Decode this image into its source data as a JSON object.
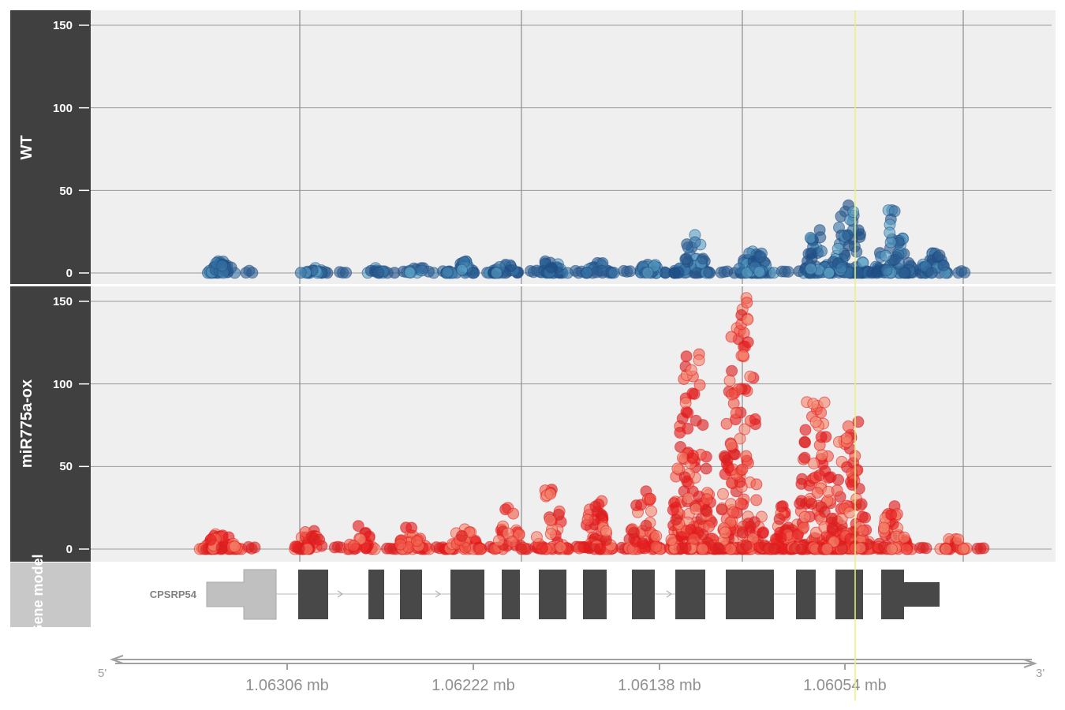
{
  "chart_data": {
    "type": "scatter",
    "tracks": [
      {
        "name": "WT",
        "ylim": [
          0,
          150
        ],
        "yticks": [
          "0",
          "50",
          "100",
          "150"
        ],
        "colors": [
          "#1f4e85",
          "#2b5c8f",
          "#3a78a8",
          "#5aa0c4"
        ]
      },
      {
        "name": "miR775a-ox",
        "ylim": [
          0,
          150
        ],
        "yticks": [
          "0",
          "50",
          "100",
          "150"
        ],
        "colors": [
          "#e41a1c",
          "#d92020",
          "#f05a4a",
          "#f4866e"
        ]
      }
    ],
    "gene_model": {
      "track_title": "Gene model",
      "gene_name": "CPSRP54",
      "strand": "-"
    },
    "axis": {
      "ticks": [
        "1.06306 mb",
        "1.06222 mb",
        "1.06138 mb",
        "1.06054 mb"
      ],
      "left_end": "5'",
      "right_end": "3'"
    },
    "highlight_color": "#e8f27a",
    "wt_clusters": [
      {
        "x": 1.06336,
        "n": 34,
        "ymax": 7
      },
      {
        "x": 1.06293,
        "n": 18,
        "ymax": 3
      },
      {
        "x": 1.06264,
        "n": 14,
        "ymax": 3
      },
      {
        "x": 1.06246,
        "n": 10,
        "ymax": 3
      },
      {
        "x": 1.06227,
        "n": 32,
        "ymax": 7
      },
      {
        "x": 1.06207,
        "n": 22,
        "ymax": 5
      },
      {
        "x": 1.06187,
        "n": 30,
        "ymax": 7
      },
      {
        "x": 1.06165,
        "n": 26,
        "ymax": 6
      },
      {
        "x": 1.06142,
        "n": 26,
        "ymax": 5
      },
      {
        "x": 1.06122,
        "n": 48,
        "ymax": 23
      },
      {
        "x": 1.06095,
        "n": 60,
        "ymax": 13
      },
      {
        "x": 1.06068,
        "n": 40,
        "ymax": 26
      },
      {
        "x": 1.06052,
        "n": 70,
        "ymax": 41
      },
      {
        "x": 1.06032,
        "n": 70,
        "ymax": 38
      },
      {
        "x": 1.06014,
        "n": 30,
        "ymax": 12
      }
    ],
    "ox_clusters": [
      {
        "x": 1.06336,
        "n": 60,
        "ymax": 9
      },
      {
        "x": 1.06296,
        "n": 35,
        "ymax": 11
      },
      {
        "x": 1.06272,
        "n": 25,
        "ymax": 14
      },
      {
        "x": 1.0625,
        "n": 35,
        "ymax": 13
      },
      {
        "x": 1.06226,
        "n": 40,
        "ymax": 12
      },
      {
        "x": 1.06205,
        "n": 28,
        "ymax": 25
      },
      {
        "x": 1.06187,
        "n": 40,
        "ymax": 36
      },
      {
        "x": 1.06167,
        "n": 50,
        "ymax": 29
      },
      {
        "x": 1.06145,
        "n": 45,
        "ymax": 35
      },
      {
        "x": 1.06123,
        "n": 160,
        "ymax": 118
      },
      {
        "x": 1.06101,
        "n": 160,
        "ymax": 152
      },
      {
        "x": 1.0608,
        "n": 60,
        "ymax": 26
      },
      {
        "x": 1.06067,
        "n": 120,
        "ymax": 89
      },
      {
        "x": 1.06052,
        "n": 110,
        "ymax": 77
      },
      {
        "x": 1.06032,
        "n": 45,
        "ymax": 26
      },
      {
        "x": 1.06005,
        "n": 20,
        "ymax": 6
      }
    ]
  }
}
